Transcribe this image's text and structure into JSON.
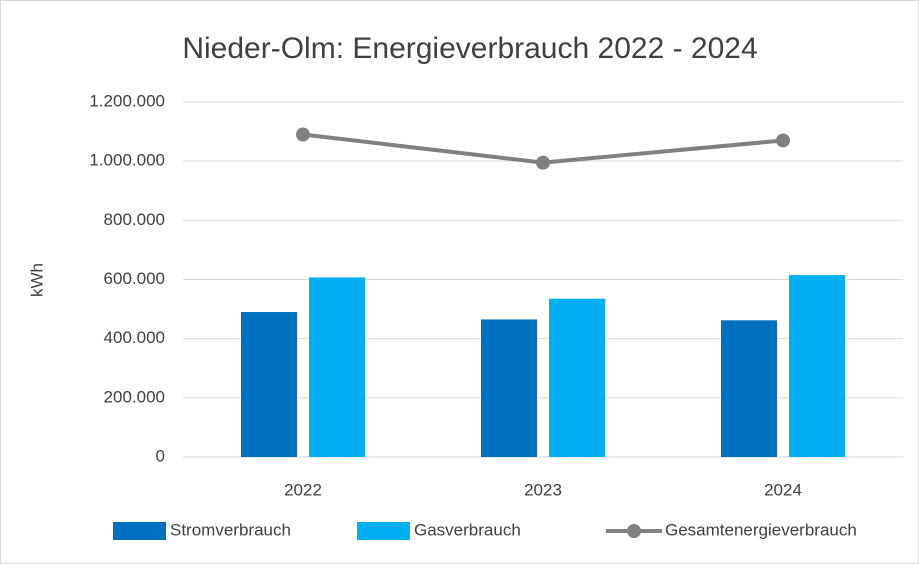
{
  "chart_data": {
    "type": "bar",
    "title": "Nieder-Olm: Energieverbrauch 2022 - 2024",
    "y_label": "kWh",
    "categories": [
      "2022",
      "2023",
      "2024"
    ],
    "series": [
      {
        "name": "Stromverbrauch",
        "color": "#0070c0",
        "values": [
          490000,
          465000,
          462000
        ]
      },
      {
        "name": "Gasverbrauch",
        "color": "#00b0f0",
        "values": [
          607000,
          535000,
          615000
        ]
      },
      {
        "name": "Gesamtenergieverbrauch",
        "color": "#808080",
        "type": "line",
        "values": [
          1090000,
          995000,
          1070000
        ]
      }
    ],
    "ylim": [
      0,
      1200000
    ],
    "yticks": [
      0,
      {
        "value": 200000,
        "label": "200.000"
      },
      {
        "value": 400000,
        "label": "400.000"
      },
      {
        "value": 600000,
        "label": "600.000"
      },
      {
        "value": 800000,
        "label": "800.000"
      },
      {
        "value": 1000000,
        "label": "1.000.000"
      },
      {
        "value": 1200000,
        "label": "1.200.000"
      }
    ],
    "grid": true,
    "legend": "bottom"
  }
}
